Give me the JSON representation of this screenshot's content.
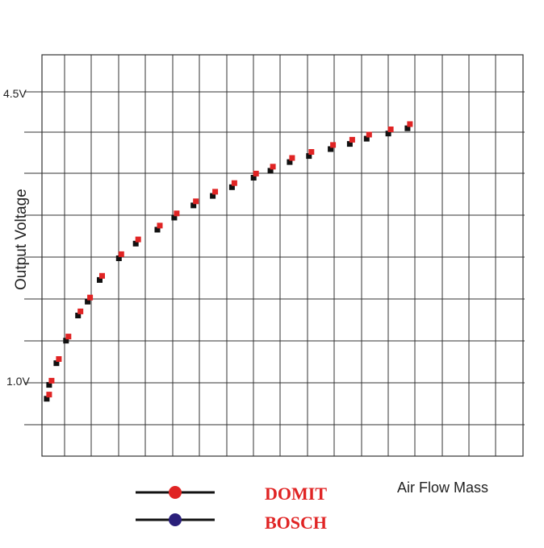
{
  "chart_data": {
    "type": "scatter",
    "title": "",
    "xlabel": "Air Flow Mass",
    "ylabel": "Output Voltage",
    "y_tick_labels": [
      "4.5V",
      "1.0V"
    ],
    "y_ticks": [
      4.5,
      1.0
    ],
    "x_range": [
      0,
      20
    ],
    "ylim": [
      0.47,
      5.1
    ],
    "grid": true,
    "legend_placement": "bottom-left",
    "x": [
      0.3,
      0.4,
      0.7,
      1.1,
      1.6,
      2.0,
      2.5,
      3.3,
      4.0,
      4.9,
      5.6,
      6.4,
      7.2,
      8.0,
      8.9,
      9.6,
      10.4,
      11.2,
      12.1,
      12.9,
      13.6,
      14.5,
      15.3
    ],
    "series": [
      {
        "name": "DOMIT",
        "color": "#e02424",
        "values": [
          1.18,
          1.34,
          1.59,
          1.85,
          2.14,
          2.3,
          2.55,
          2.8,
          2.97,
          3.13,
          3.27,
          3.41,
          3.52,
          3.62,
          3.73,
          3.81,
          3.91,
          3.98,
          4.06,
          4.12,
          4.18,
          4.24,
          4.3
        ]
      },
      {
        "name": "BOSCH",
        "color": "#2a1f7a",
        "values": [
          1.16,
          1.32,
          1.57,
          1.83,
          2.12,
          2.28,
          2.53,
          2.78,
          2.95,
          3.11,
          3.25,
          3.39,
          3.5,
          3.6,
          3.71,
          3.79,
          3.89,
          3.96,
          4.04,
          4.1,
          4.16,
          4.22,
          4.28
        ]
      }
    ]
  }
}
